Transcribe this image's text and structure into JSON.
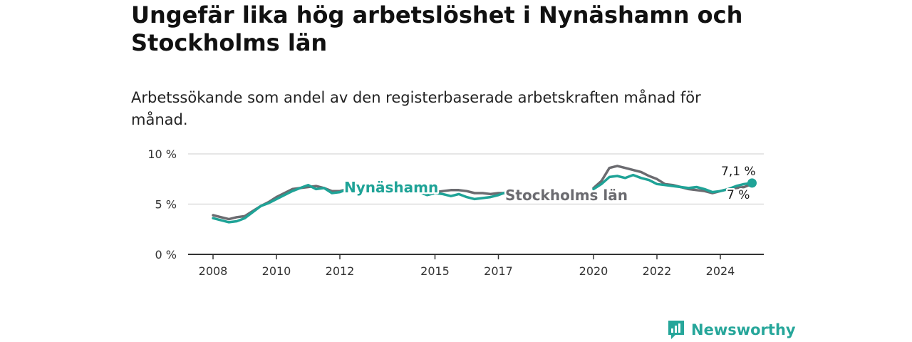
{
  "title": "Ungefär lika hög arbetslöshet i Nynäshamn och Stockholms län",
  "subtitle": "Arbetssökande som andel av den registerbaserade arbetskraften månad för månad.",
  "brand": {
    "name": "Newsworthy",
    "color": "#26a69a",
    "icon": "newsworthy-logo-icon"
  },
  "colors": {
    "nynashamn": "#1fa397",
    "stockholm": "#6b6b70",
    "grid": "#dddddd",
    "axis": "#333333"
  },
  "chart_data": {
    "type": "line",
    "title": "Ungefär lika hög arbetslöshet i Nynäshamn och Stockholms län",
    "xlabel": "",
    "ylabel": "",
    "xlim": [
      2008,
      2025.6
    ],
    "ylim": [
      0,
      10
    ],
    "y_ticks": [
      {
        "value": 0,
        "label": "0 %"
      },
      {
        "value": 5,
        "label": "5 %"
      },
      {
        "value": 10,
        "label": "10 %"
      }
    ],
    "x_ticks": [
      {
        "value": 2008,
        "label": "2008"
      },
      {
        "value": 2010,
        "label": "2010"
      },
      {
        "value": 2012,
        "label": "2012"
      },
      {
        "value": 2015,
        "label": "2015"
      },
      {
        "value": 2017,
        "label": "2017"
      },
      {
        "value": 2020,
        "label": "2020"
      },
      {
        "value": 2022,
        "label": "2022"
      },
      {
        "value": 2024,
        "label": "2024"
      }
    ],
    "series": [
      {
        "name": "Stockholms län",
        "label": "Stockholms län",
        "end_label": "7 %",
        "color": "#6b6b70",
        "points": [
          [
            2008,
            3.9
          ],
          [
            2008.25,
            3.7
          ],
          [
            2008.5,
            3.5
          ],
          [
            2008.75,
            3.7
          ],
          [
            2009,
            3.8
          ],
          [
            2009.25,
            4.3
          ],
          [
            2009.5,
            4.8
          ],
          [
            2009.75,
            5.2
          ],
          [
            2010,
            5.7
          ],
          [
            2010.25,
            6.1
          ],
          [
            2010.5,
            6.5
          ],
          [
            2010.75,
            6.6
          ],
          [
            2011,
            6.7
          ],
          [
            2011.25,
            6.8
          ],
          [
            2011.5,
            6.6
          ],
          [
            2011.75,
            6.3
          ],
          [
            2012,
            6.3
          ],
          [
            2012.25,
            6.5
          ],
          [
            2012.5,
            6.6
          ],
          [
            2014.5,
            6.5
          ],
          [
            2014.75,
            6.3
          ],
          [
            2015,
            6.2
          ],
          [
            2015.25,
            6.3
          ],
          [
            2015.5,
            6.4
          ],
          [
            2015.75,
            6.4
          ],
          [
            2016,
            6.3
          ],
          [
            2016.25,
            6.1
          ],
          [
            2016.5,
            6.1
          ],
          [
            2016.75,
            6.0
          ],
          [
            2017,
            6.1
          ],
          [
            2017.25,
            6.1
          ],
          [
            2020,
            6.6
          ],
          [
            2020.25,
            7.3
          ],
          [
            2020.5,
            8.6
          ],
          [
            2020.75,
            8.8
          ],
          [
            2021,
            8.6
          ],
          [
            2021.25,
            8.4
          ],
          [
            2021.5,
            8.2
          ],
          [
            2021.75,
            7.8
          ],
          [
            2022,
            7.5
          ],
          [
            2022.25,
            7.0
          ],
          [
            2022.5,
            6.9
          ],
          [
            2022.75,
            6.7
          ],
          [
            2023,
            6.5
          ],
          [
            2023.25,
            6.4
          ],
          [
            2023.5,
            6.3
          ],
          [
            2023.75,
            6.1
          ],
          [
            2024,
            6.3
          ],
          [
            2024.25,
            6.5
          ],
          [
            2024.5,
            6.6
          ],
          [
            2024.75,
            6.7
          ],
          [
            2025,
            7.0
          ]
        ]
      },
      {
        "name": "Nynäshamn",
        "label": "Nynäshamn",
        "end_label": "7,1 %",
        "color": "#1fa397",
        "points": [
          [
            2008,
            3.6
          ],
          [
            2008.25,
            3.4
          ],
          [
            2008.5,
            3.2
          ],
          [
            2008.75,
            3.3
          ],
          [
            2009,
            3.6
          ],
          [
            2009.25,
            4.2
          ],
          [
            2009.5,
            4.8
          ],
          [
            2009.75,
            5.1
          ],
          [
            2010,
            5.5
          ],
          [
            2010.25,
            5.9
          ],
          [
            2010.5,
            6.3
          ],
          [
            2010.75,
            6.6
          ],
          [
            2011,
            6.9
          ],
          [
            2011.25,
            6.5
          ],
          [
            2011.5,
            6.6
          ],
          [
            2011.75,
            6.1
          ],
          [
            2012,
            6.2
          ],
          [
            2012.25,
            6.5
          ],
          [
            2012.5,
            6.8
          ],
          [
            2014.5,
            6.2
          ],
          [
            2014.75,
            5.9
          ],
          [
            2015,
            6.1
          ],
          [
            2015.25,
            6.0
          ],
          [
            2015.5,
            5.8
          ],
          [
            2015.75,
            6.0
          ],
          [
            2016,
            5.7
          ],
          [
            2016.25,
            5.5
          ],
          [
            2016.5,
            5.6
          ],
          [
            2016.75,
            5.7
          ],
          [
            2017,
            5.9
          ],
          [
            2017.25,
            6.2
          ],
          [
            2020,
            6.5
          ],
          [
            2020.25,
            7.0
          ],
          [
            2020.5,
            7.7
          ],
          [
            2020.75,
            7.8
          ],
          [
            2021,
            7.6
          ],
          [
            2021.25,
            7.9
          ],
          [
            2021.5,
            7.6
          ],
          [
            2021.75,
            7.4
          ],
          [
            2022,
            7.0
          ],
          [
            2022.25,
            6.9
          ],
          [
            2022.5,
            6.8
          ],
          [
            2022.75,
            6.7
          ],
          [
            2023,
            6.6
          ],
          [
            2023.25,
            6.7
          ],
          [
            2023.5,
            6.5
          ],
          [
            2023.75,
            6.2
          ],
          [
            2024,
            6.3
          ],
          [
            2024.25,
            6.5
          ],
          [
            2024.5,
            6.8
          ],
          [
            2024.75,
            7.0
          ],
          [
            2025,
            7.1
          ]
        ]
      }
    ]
  }
}
